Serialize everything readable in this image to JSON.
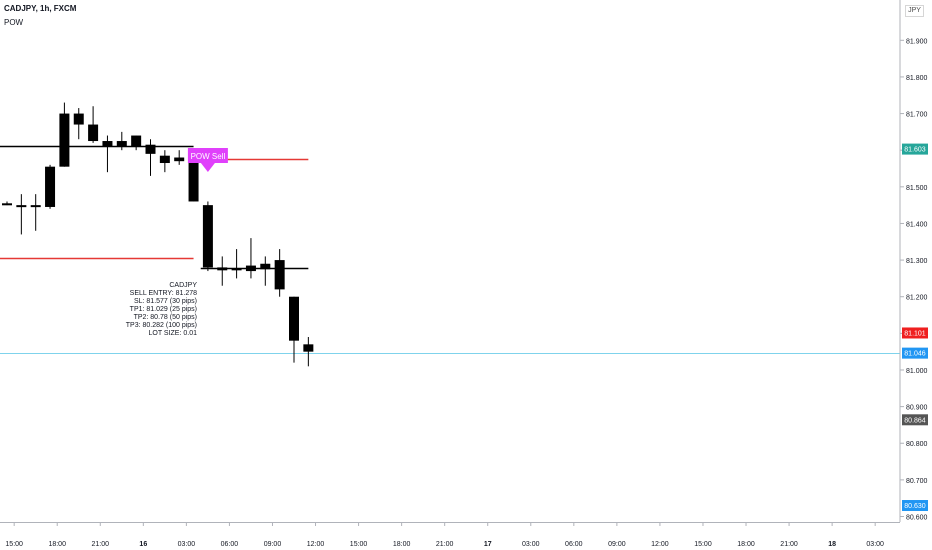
{
  "header": {
    "title": "CADJPY, 1h, FXCM",
    "indicator": "POW"
  },
  "currency_unit": "JPY",
  "signal_label": "POW Sell",
  "info_block": [
    "CADJPY",
    "SELL ENTRY: 81.278",
    "SL: 81.577 (30 pips)",
    "TP1: 81.029 (25 pips)",
    "TP2: 80.78 (50 pips)",
    "TP3: 80.282 (100 pips)",
    "LOT SIZE: 0.01"
  ],
  "price_badges": [
    {
      "value": "81.603",
      "color": "#26a69a"
    },
    {
      "value": "81.101",
      "color": "#ef1f1f"
    },
    {
      "value": "81.046",
      "color": "#2196f3"
    },
    {
      "value": "80.864",
      "color": "#555555"
    },
    {
      "value": "80.630",
      "color": "#2196f3"
    }
  ],
  "colors": {
    "candle": "#000000",
    "sell_line": "#e53935",
    "signal_bg": "#e040fb",
    "current_price_line": "#7fd3ec"
  },
  "chart_data": {
    "type": "candlestick",
    "symbol": "CADJPY",
    "timeframe": "1h",
    "y_range": [
      80.585,
      82.01
    ],
    "y_ticks": [
      "81.900",
      "81.800",
      "81.700",
      "81.600",
      "81.500",
      "81.400",
      "81.300",
      "81.200",
      "81.100",
      "81.000",
      "80.900",
      "80.800",
      "80.700",
      "80.600"
    ],
    "top_tick_partial": "8",
    "x_ticks": [
      {
        "label": "15:00",
        "bar": 0.5
      },
      {
        "label": "18:00",
        "bar": 3.5
      },
      {
        "label": "21:00",
        "bar": 6.5
      },
      {
        "label": "16",
        "bar": 9.5
      },
      {
        "label": "03:00",
        "bar": 12.5
      },
      {
        "label": "06:00",
        "bar": 15.5
      },
      {
        "label": "09:00",
        "bar": 18.5
      },
      {
        "label": "12:00",
        "bar": 21.5
      },
      {
        "label": "15:00",
        "bar": 24.5
      },
      {
        "label": "18:00",
        "bar": 27.5
      },
      {
        "label": "21:00",
        "bar": 30.5
      },
      {
        "label": "17",
        "bar": 33.5
      },
      {
        "label": "03:00",
        "bar": 36.5
      },
      {
        "label": "06:00",
        "bar": 39.5
      },
      {
        "label": "09:00",
        "bar": 42.5
      },
      {
        "label": "12:00",
        "bar": 45.5
      },
      {
        "label": "15:00",
        "bar": 48.5
      },
      {
        "label": "18:00",
        "bar": 51.5
      },
      {
        "label": "21:00",
        "bar": 54.5
      },
      {
        "label": "18",
        "bar": 57.5
      },
      {
        "label": "03:00",
        "bar": 60.5
      }
    ],
    "bold_x_ticks": [
      "16",
      "17",
      "18"
    ],
    "bars_visible_start": -0.5,
    "candles": [
      {
        "o": 81.455,
        "h": 81.46,
        "l": 81.45,
        "c": 81.452
      },
      {
        "o": 81.448,
        "h": 81.48,
        "l": 81.37,
        "c": 81.45
      },
      {
        "o": 81.45,
        "h": 81.48,
        "l": 81.38,
        "c": 81.448
      },
      {
        "o": 81.445,
        "h": 81.56,
        "l": 81.44,
        "c": 81.555
      },
      {
        "o": 81.555,
        "h": 81.73,
        "l": 81.555,
        "c": 81.7
      },
      {
        "o": 81.7,
        "h": 81.715,
        "l": 81.63,
        "c": 81.67
      },
      {
        "o": 81.67,
        "h": 81.72,
        "l": 81.62,
        "c": 81.625
      },
      {
        "o": 81.625,
        "h": 81.64,
        "l": 81.54,
        "c": 81.61
      },
      {
        "o": 81.61,
        "h": 81.65,
        "l": 81.6,
        "c": 81.625
      },
      {
        "o": 81.61,
        "h": 81.64,
        "l": 81.6,
        "c": 81.64
      },
      {
        "o": 81.615,
        "h": 81.63,
        "l": 81.53,
        "c": 81.59
      },
      {
        "o": 81.585,
        "h": 81.6,
        "l": 81.54,
        "c": 81.565
      },
      {
        "o": 81.58,
        "h": 81.6,
        "l": 81.56,
        "c": 81.57
      },
      {
        "o": 81.57,
        "h": 81.6,
        "l": 81.46,
        "c": 81.46
      },
      {
        "o": 81.45,
        "h": 81.46,
        "l": 81.27,
        "c": 81.28
      },
      {
        "o": 81.28,
        "h": 81.31,
        "l": 81.23,
        "c": 81.272
      },
      {
        "o": 81.272,
        "h": 81.33,
        "l": 81.25,
        "c": 81.278
      },
      {
        "o": 81.27,
        "h": 81.36,
        "l": 81.25,
        "c": 81.285
      },
      {
        "o": 81.29,
        "h": 81.31,
        "l": 81.23,
        "c": 81.275
      },
      {
        "o": 81.3,
        "h": 81.33,
        "l": 81.2,
        "c": 81.22
      },
      {
        "o": 81.2,
        "h": 81.2,
        "l": 81.02,
        "c": 81.08
      },
      {
        "o": 81.07,
        "h": 81.09,
        "l": 81.01,
        "c": 81.05
      }
    ],
    "horizontal_lines": [
      {
        "name": "resistance",
        "price": 81.612,
        "from_bar": -0.5,
        "to_bar": 13.0,
        "color": "#000000"
      },
      {
        "name": "stop-loss-line",
        "price": 81.577,
        "from_bar": 13.5,
        "to_bar": 21.0,
        "color": "#e53935"
      },
      {
        "name": "support",
        "price": 81.306,
        "from_bar": -0.5,
        "to_bar": 13.0,
        "color": "#e53935"
      },
      {
        "name": "entry-line",
        "price": 81.278,
        "from_bar": 13.5,
        "to_bar": 21.0,
        "color": "#000000"
      },
      {
        "name": "current-price-line",
        "price": 81.046,
        "from_bar": -0.5,
        "to_bar": 64.0,
        "color": "#7fd3ec"
      }
    ],
    "signal": {
      "label": "POW Sell",
      "bar": 14,
      "price": 81.6
    }
  }
}
